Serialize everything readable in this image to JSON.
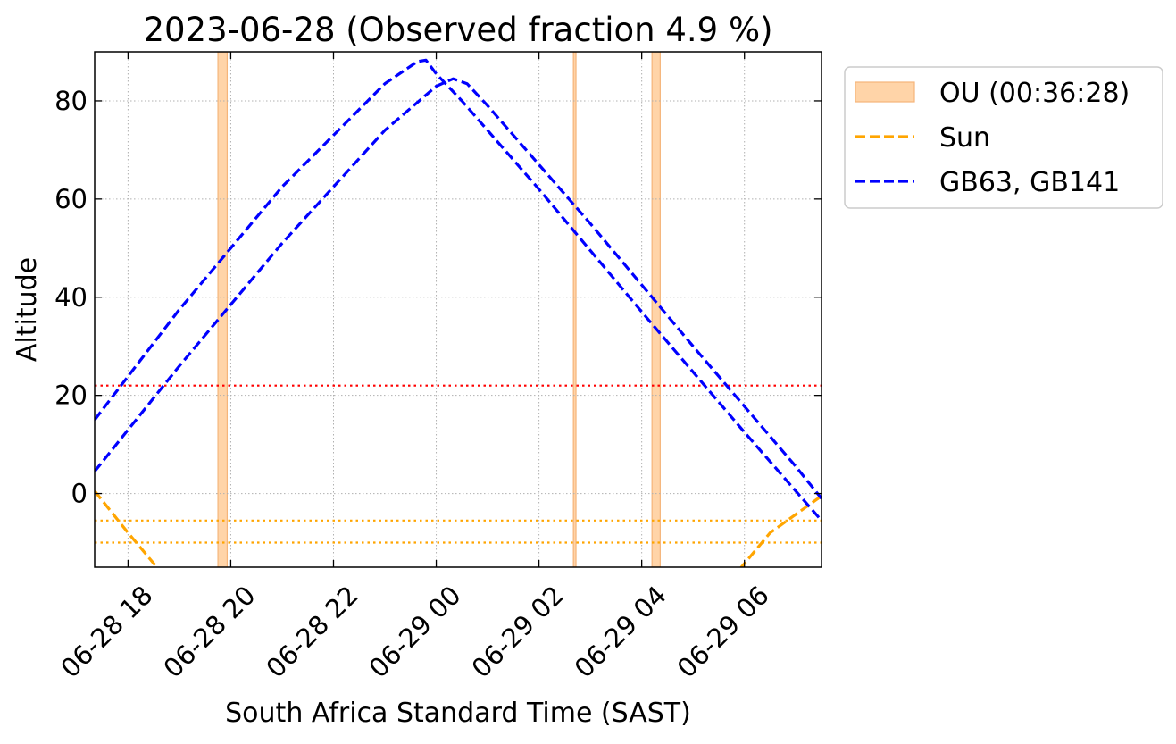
{
  "chart_data": {
    "type": "line",
    "title": "2023-06-28 (Observed fraction 4.9 %)",
    "xlabel": "South Africa Standard Time (SAST)",
    "ylabel": "Altitude",
    "x_unit": "hours",
    "x_origin_label": "2023-06-28 00:00 SAST",
    "xlim": [
      17.35,
      31.5
    ],
    "ylim": [
      -15,
      90
    ],
    "xticks": [
      {
        "value": 18,
        "label": "06-28 18"
      },
      {
        "value": 20,
        "label": "06-28 20"
      },
      {
        "value": 22,
        "label": "06-28 22"
      },
      {
        "value": 24,
        "label": "06-29 00"
      },
      {
        "value": 26,
        "label": "06-29 02"
      },
      {
        "value": 28,
        "label": "06-29 04"
      },
      {
        "value": 30,
        "label": "06-29 06"
      }
    ],
    "yticks": [
      0,
      20,
      40,
      60,
      80
    ],
    "grid": true,
    "legend": {
      "placement": "outside-upper-right",
      "entries": [
        {
          "label": "OU (00:36:28)",
          "kind": "patch",
          "color": "#ffd4a8",
          "edge": "#f5b57a"
        },
        {
          "label": "Sun",
          "kind": "dashed-line",
          "color": "#ffa500"
        },
        {
          "label": "GB63, GB141",
          "kind": "dashed-line",
          "color": "#0000ff"
        }
      ]
    },
    "shaded_regions": [
      {
        "label": "OU",
        "x_start": 19.75,
        "x_end": 19.93
      },
      {
        "label": "OU",
        "x_start": 26.67,
        "x_end": 26.72
      },
      {
        "label": "OU",
        "x_start": 28.2,
        "x_end": 28.36
      }
    ],
    "horizontal_lines": [
      {
        "y": 22,
        "color": "#ff0000",
        "style": "dotted"
      },
      {
        "y": -5.5,
        "color": "#ffa500",
        "style": "dotted"
      },
      {
        "y": -10,
        "color": "#ffa500",
        "style": "dotted"
      }
    ],
    "series": [
      {
        "name": "Sun",
        "color": "#ffa500",
        "style": "dashed",
        "segments": [
          [
            [
              17.35,
              0.5
            ],
            [
              18.0,
              -8.0
            ],
            [
              18.6,
              -15.5
            ]
          ],
          [
            [
              29.9,
              -15.5
            ],
            [
              30.5,
              -8.0
            ],
            [
              31.5,
              -0.5
            ]
          ]
        ]
      },
      {
        "name": "GB63, GB141",
        "color": "#0000ff",
        "style": "dashed",
        "segments": [
          [
            [
              17.35,
              15.0
            ],
            [
              19.0,
              37.5
            ],
            [
              21.0,
              62.5
            ],
            [
              23.0,
              83.5
            ],
            [
              23.63,
              88.0
            ],
            [
              23.8,
              88.3
            ],
            [
              24.0,
              85.5
            ],
            [
              24.5,
              80.0
            ],
            [
              26.0,
              62.0
            ],
            [
              28.0,
              37.0
            ],
            [
              30.0,
              12.5
            ],
            [
              31.5,
              -5.5
            ]
          ],
          [
            [
              17.35,
              4.5
            ],
            [
              19.0,
              26.0
            ],
            [
              21.0,
              51.0
            ],
            [
              23.0,
              74.0
            ],
            [
              24.0,
              83.0
            ],
            [
              24.33,
              84.5
            ],
            [
              24.6,
              83.5
            ],
            [
              25.0,
              79.0
            ],
            [
              27.0,
              55.0
            ],
            [
              29.0,
              30.0
            ],
            [
              31.0,
              5.5
            ],
            [
              31.5,
              -1.0
            ]
          ]
        ]
      }
    ]
  }
}
